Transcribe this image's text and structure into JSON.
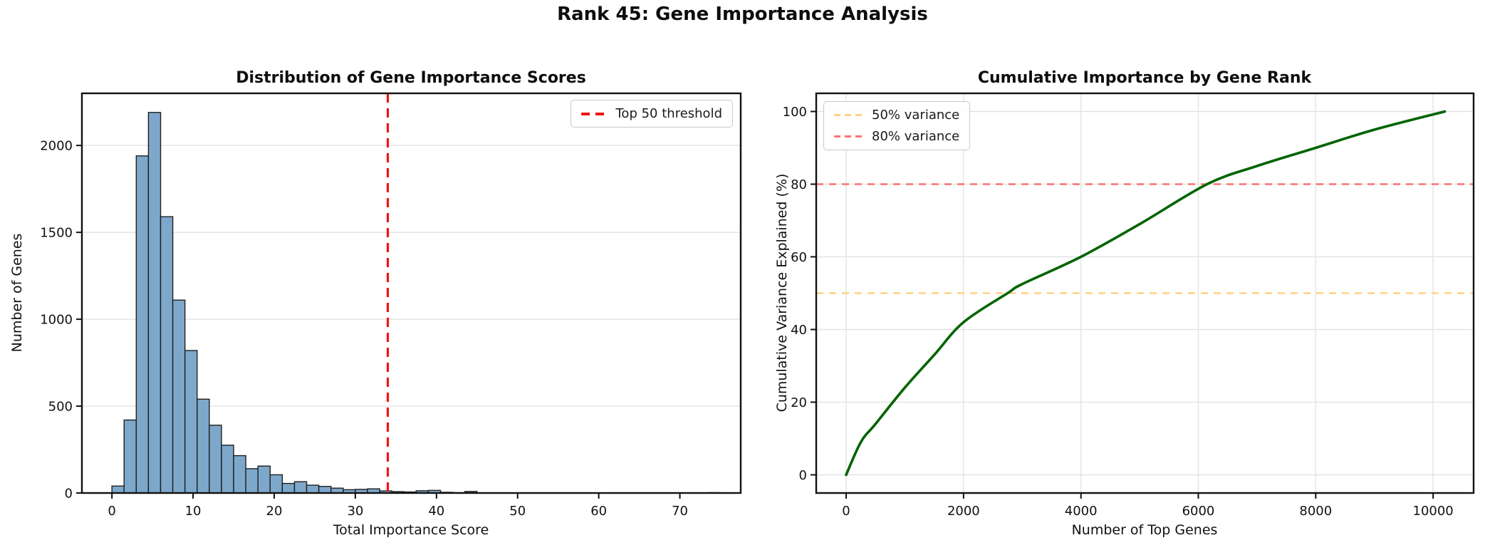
{
  "figure": {
    "title": "Rank 45: Gene Importance Analysis",
    "background_color": "#ffffff",
    "grid_color": "#e3e3e3",
    "spine_color": "#111111"
  },
  "chart_data": [
    {
      "type": "bar",
      "title": "Distribution of Gene Importance Scores",
      "xlabel": "Total Importance Score",
      "ylabel": "Number of Genes",
      "bin_start": 0,
      "bin_width": 1.5,
      "counts": [
        40,
        420,
        1940,
        2190,
        1590,
        1110,
        820,
        540,
        390,
        275,
        215,
        140,
        155,
        105,
        55,
        65,
        45,
        38,
        28,
        19,
        21,
        24,
        12,
        8,
        6,
        13,
        15,
        4,
        2,
        9,
        0,
        0,
        0,
        0,
        0,
        0,
        0,
        0,
        0,
        0,
        0,
        0,
        0,
        0,
        0,
        0,
        0,
        0,
        0,
        2
      ],
      "xticks": [
        0,
        10,
        20,
        30,
        40,
        50,
        60,
        70
      ],
      "yticks": [
        0,
        500,
        1000,
        1500,
        2000
      ],
      "xlim": [
        -3.7,
        77.5
      ],
      "ylim": [
        0,
        2300
      ],
      "grid": "y",
      "bar_color": "#7DA8CB",
      "bar_edge_color": "#1f1f1f",
      "vline": {
        "x": 34,
        "color": "#f01414",
        "label": "Top 50 threshold"
      },
      "legend_position": "top-right"
    },
    {
      "type": "line",
      "title": "Cumulative Importance by Gene Rank",
      "xlabel": "Number of Top Genes",
      "ylabel": "Cumulative Variance Explained (%)",
      "x": [
        0,
        250,
        500,
        1000,
        1500,
        2000,
        2750,
        3000,
        4000,
        5000,
        6150,
        7000,
        8000,
        9000,
        10200
      ],
      "y": [
        0,
        9,
        14,
        24,
        33,
        42,
        50,
        52.5,
        60,
        69,
        80,
        85,
        90,
        95,
        100
      ],
      "xticks": [
        0,
        2000,
        4000,
        6000,
        8000,
        10000
      ],
      "yticks": [
        0,
        20,
        40,
        60,
        80,
        100
      ],
      "xlim": [
        -510,
        10690
      ],
      "ylim": [
        -5,
        105
      ],
      "grid": "both",
      "line_color": "#006400",
      "hlines": [
        {
          "y": 50,
          "color": "#FFD182",
          "label": "50% variance"
        },
        {
          "y": 80,
          "color": "#FC7272",
          "label": "80% variance"
        }
      ],
      "legend_position": "top-left"
    }
  ]
}
